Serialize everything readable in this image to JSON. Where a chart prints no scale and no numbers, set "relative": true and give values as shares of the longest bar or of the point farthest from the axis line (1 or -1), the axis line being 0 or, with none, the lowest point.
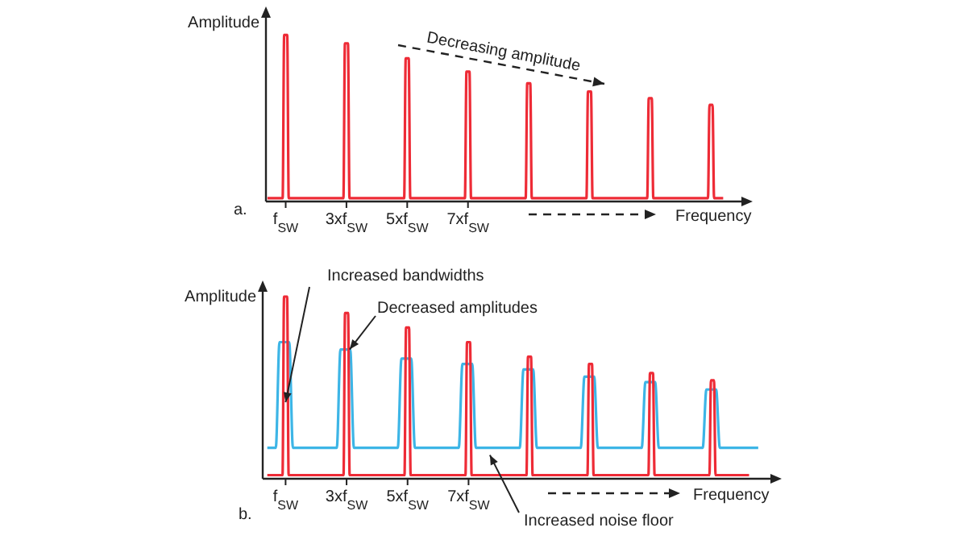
{
  "chart_data": [
    {
      "type": "line",
      "relative": true,
      "ylabel": "Amplitude",
      "xlabel": "Frequency",
      "xlim": [
        0.35,
        16
      ],
      "xticks": [
        {
          "value": 1,
          "label": "f$_{SW}$"
        },
        {
          "value": 3,
          "label": "3xf$_{SW}$"
        },
        {
          "value": 5,
          "label": "5xf$_{SW}$"
        },
        {
          "value": 7,
          "label": "7xf$_{SW}$"
        }
      ],
      "annotations": [
        "a.",
        "Decreasing amplitude"
      ],
      "series": [
        {
          "color": "#ee2b36",
          "x": [
            0.4,
            0.9,
            0.95,
            1.05,
            1.1,
            2.9,
            2.95,
            3.05,
            3.1,
            4.9,
            4.95,
            5.05,
            5.1,
            6.9,
            6.95,
            7.05,
            7.1,
            8.9,
            8.95,
            9.05,
            9.1,
            10.9,
            10.95,
            11.05,
            11.1,
            12.9,
            12.95,
            13.05,
            13.1,
            14.9,
            14.95,
            15.05,
            15.1,
            15.4
          ],
          "values": [
            0.02,
            0.02,
            1,
            1,
            0.02,
            0.02,
            0.95,
            0.95,
            0.02,
            0.02,
            0.86,
            0.86,
            0.02,
            0.02,
            0.78,
            0.78,
            0.02,
            0.02,
            0.71,
            0.71,
            0.02,
            0.02,
            0.66,
            0.66,
            0.02,
            0.02,
            0.62,
            0.62,
            0.02,
            0.02,
            0.58,
            0.58,
            0.02,
            0.02
          ]
        }
      ]
    },
    {
      "type": "line",
      "relative": true,
      "ylabel": "Amplitude",
      "xlabel": "Frequency",
      "xlim": [
        0.25,
        16.9
      ],
      "xticks": [
        {
          "value": 1,
          "label": "f$_{SW}$"
        },
        {
          "value": 3,
          "label": "3xf$_{SW}$"
        },
        {
          "value": 5,
          "label": "5xf$_{SW}$"
        },
        {
          "value": 7,
          "label": "7xf$_{SW}$"
        }
      ],
      "annotations": [
        "b.",
        {
          "text": "Increased bandwidths",
          "x": 1,
          "y": 0.42
        },
        {
          "text": "Decreased amplitudes",
          "x": 3.1,
          "y": 0.71
        },
        {
          "text": "Increased noise floor",
          "x": 7.7,
          "y": 0.13
        }
      ],
      "series": [
        {
          "color": "#3db5e6",
          "x": [
            0.4,
            0.68,
            0.8,
            1.12,
            1.24,
            2.68,
            2.8,
            3.12,
            3.24,
            4.68,
            4.8,
            5.12,
            5.24,
            6.68,
            6.8,
            7.12,
            7.24,
            8.68,
            8.8,
            9.12,
            9.24,
            10.68,
            10.8,
            11.12,
            11.24,
            12.68,
            12.8,
            13.12,
            13.24,
            14.68,
            14.8,
            15.12,
            15.24,
            16.5
          ],
          "values": [
            0.17,
            0.17,
            0.75,
            0.75,
            0.17,
            0.17,
            0.71,
            0.71,
            0.17,
            0.17,
            0.66,
            0.66,
            0.17,
            0.17,
            0.63,
            0.63,
            0.17,
            0.17,
            0.6,
            0.6,
            0.17,
            0.17,
            0.56,
            0.56,
            0.17,
            0.17,
            0.53,
            0.53,
            0.17,
            0.17,
            0.49,
            0.49,
            0.17,
            0.17
          ]
        },
        {
          "color": "#ee2b36",
          "x": [
            0.4,
            0.9,
            0.95,
            1.05,
            1.1,
            2.9,
            2.95,
            3.05,
            3.1,
            4.9,
            4.95,
            5.05,
            5.1,
            6.9,
            6.95,
            7.05,
            7.1,
            8.9,
            8.95,
            9.05,
            9.1,
            10.9,
            10.95,
            11.05,
            11.1,
            12.9,
            12.95,
            13.05,
            13.1,
            14.9,
            14.95,
            15.05,
            15.1,
            16.2
          ],
          "values": [
            0.02,
            0.02,
            1,
            1,
            0.02,
            0.02,
            0.91,
            0.91,
            0.02,
            0.02,
            0.83,
            0.83,
            0.02,
            0.02,
            0.75,
            0.75,
            0.02,
            0.02,
            0.67,
            0.67,
            0.02,
            0.02,
            0.63,
            0.63,
            0.02,
            0.02,
            0.58,
            0.58,
            0.02,
            0.02,
            0.54,
            0.54,
            0.02,
            0.02
          ]
        }
      ]
    }
  ]
}
